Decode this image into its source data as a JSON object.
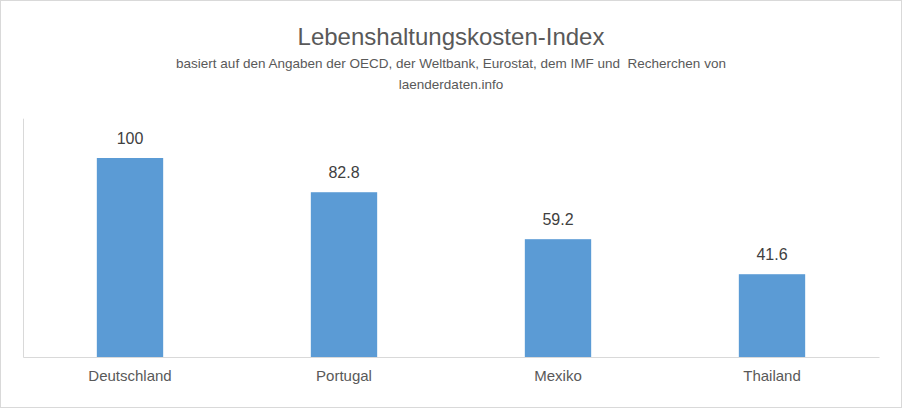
{
  "chart_data": {
    "type": "bar",
    "title": "Lebenshaltungskosten-Index",
    "subtitle": [
      "basiert auf den Angaben der OECD, der Weltbank, Eurostat, dem IMF und  Recherchen von",
      "laenderdaten.info"
    ],
    "categories": [
      "Deutschland",
      "Portugal",
      "Mexiko",
      "Thailand"
    ],
    "values": [
      100,
      82.8,
      59.2,
      41.6
    ],
    "color": "#5b9bd5",
    "ylim": [
      0,
      120
    ],
    "data_labels": true,
    "tick_labels": "x",
    "grid": false
  }
}
